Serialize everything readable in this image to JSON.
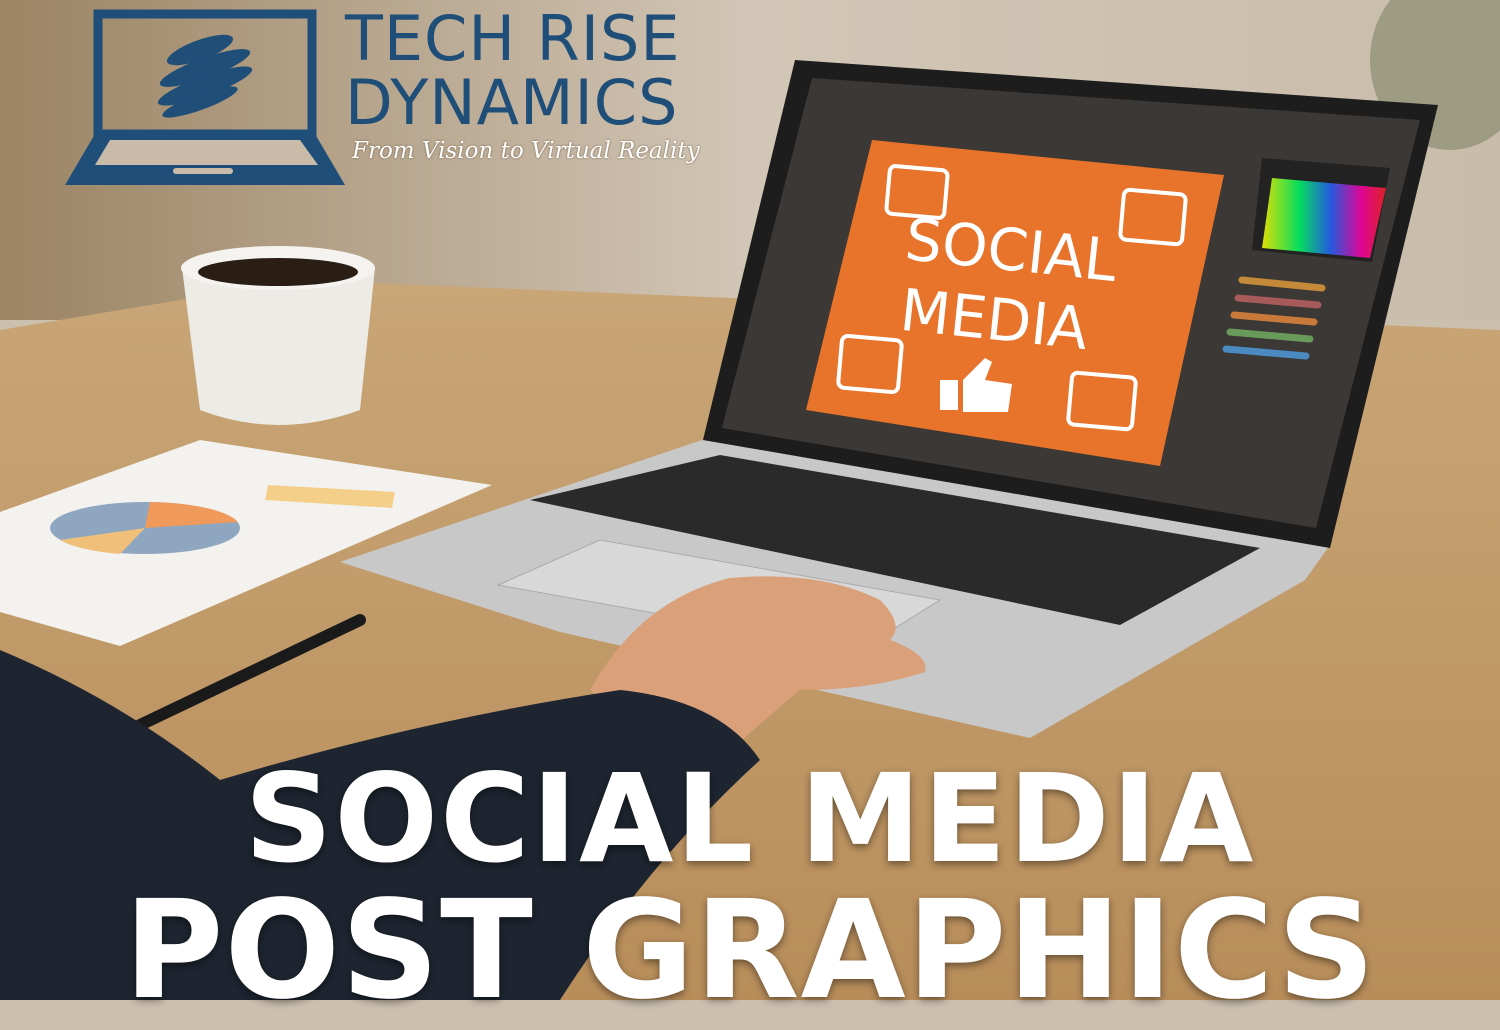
{
  "logo": {
    "line1": "TECH RISE",
    "line2": "DYNAMICS",
    "tagline": "From Vision to Virtual Reality",
    "color": "#1f4e79"
  },
  "screen": {
    "card_line1": "SOCIAL",
    "card_line2": "MEDIA",
    "card_color": "#e8732a",
    "icons": [
      "users-icon",
      "user-icon",
      "heart-icon",
      "thumbs-up-icon",
      "share-icon"
    ]
  },
  "headline": {
    "line1": "SOCIAL MEDIA",
    "line2": "POST GRAPHICS"
  }
}
